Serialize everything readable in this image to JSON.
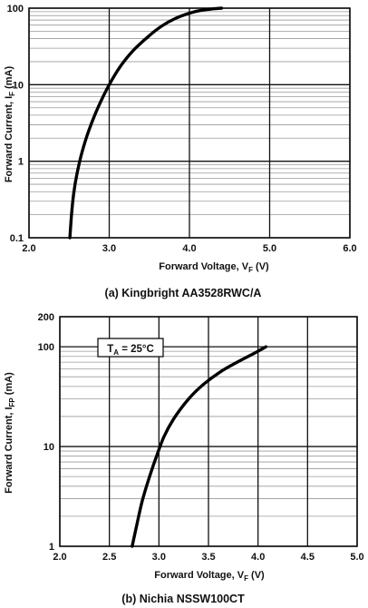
{
  "chart_data": [
    {
      "type": "line",
      "caption": "(a) Kingbright AA3528RWC/A",
      "xlabel": "Forward Voltage, V",
      "xlabel_sub": "F",
      "xlabel_unit": " (V)",
      "ylabel": "Forward Current, I",
      "ylabel_sub": "F",
      "ylabel_unit": " (mA)",
      "xlim": [
        2.0,
        6.0
      ],
      "ylim": [
        0.1,
        100
      ],
      "yscale": "log",
      "grid": true,
      "xticks": [
        2.0,
        3.0,
        4.0,
        5.0,
        6.0
      ],
      "xtick_labels": [
        "2.0",
        "3.0",
        "4.0",
        "5.0",
        "6.0"
      ],
      "yticks": [
        0.1,
        1,
        10,
        100
      ],
      "ytick_labels": [
        "0.1",
        "1",
        "10",
        "100"
      ],
      "series": [
        {
          "x": [
            2.51,
            2.53,
            2.56,
            2.6,
            2.66,
            2.75,
            2.87,
            3.0,
            3.15,
            3.3,
            3.48,
            3.65,
            3.82,
            4.0,
            4.15,
            4.3,
            4.4
          ],
          "y": [
            0.1,
            0.2,
            0.4,
            0.7,
            1.3,
            2.6,
            5.3,
            10,
            18,
            28,
            42,
            58,
            73,
            86,
            94,
            98,
            100
          ]
        }
      ]
    },
    {
      "type": "line",
      "caption": "(b) Nichia NSSW100CT",
      "xlabel": "Forward Voltage, V",
      "xlabel_sub": "F",
      "xlabel_unit": " (V)",
      "ylabel": "Forward Current, I",
      "ylabel_sub": "FP",
      "ylabel_unit": " (mA)",
      "xlim": [
        2.0,
        5.0
      ],
      "ylim": [
        1,
        200
      ],
      "yscale": "log",
      "grid": true,
      "xticks": [
        2.0,
        2.5,
        3.0,
        3.5,
        4.0,
        4.5,
        5.0
      ],
      "xtick_labels": [
        "2.0",
        "2.5",
        "3.0",
        "3.5",
        "4.0",
        "4.5",
        "5.0"
      ],
      "yticks": [
        1,
        10,
        100,
        200
      ],
      "ytick_labels": [
        "1",
        "10",
        "100",
        "200"
      ],
      "annotation": {
        "prefix": "T",
        "sub": "A",
        "rest": " = 25°C"
      },
      "series": [
        {
          "x": [
            2.73,
            2.78,
            2.83,
            2.9,
            2.97,
            3.05,
            3.15,
            3.3,
            3.45,
            3.62,
            3.8,
            3.98,
            4.08
          ],
          "y": [
            1,
            1.7,
            2.8,
            4.8,
            7.7,
            12.5,
            19,
            30,
            42,
            56,
            71,
            88,
            100
          ]
        }
      ]
    }
  ]
}
